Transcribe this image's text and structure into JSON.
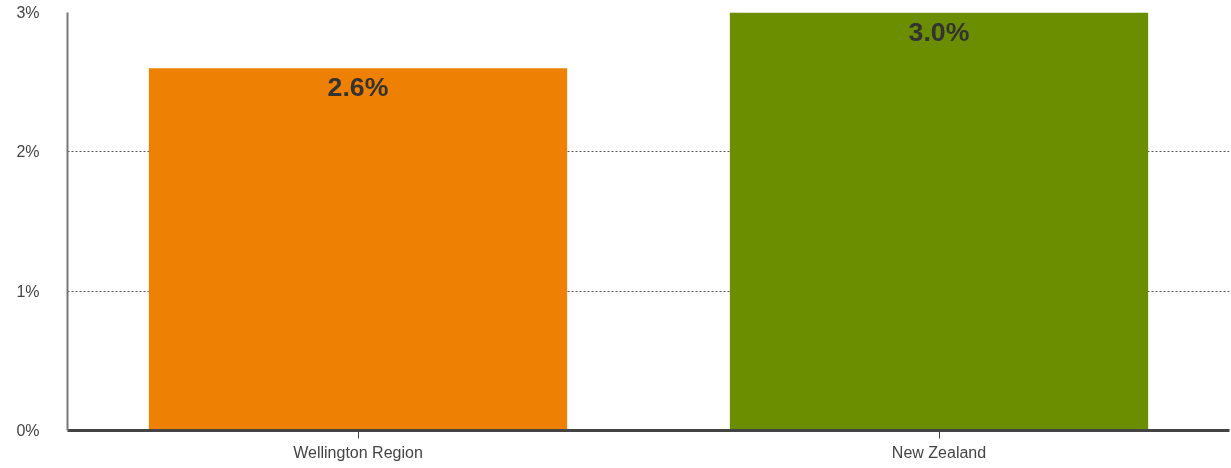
{
  "chart_data": {
    "type": "bar",
    "categories": [
      "Wellington Region",
      "New Zealand"
    ],
    "values": [
      2.6,
      3.0
    ],
    "colors": [
      "#ee8003",
      "#6b8e00"
    ],
    "value_labels": [
      "2.6%",
      "3.0%"
    ],
    "ylim": [
      0,
      3
    ],
    "yticks": [
      {
        "value": 0,
        "label": "0%"
      },
      {
        "value": 1,
        "label": "1%"
      },
      {
        "value": 2,
        "label": "2%"
      },
      {
        "value": 3,
        "label": "3%"
      }
    ],
    "grid": "y"
  }
}
